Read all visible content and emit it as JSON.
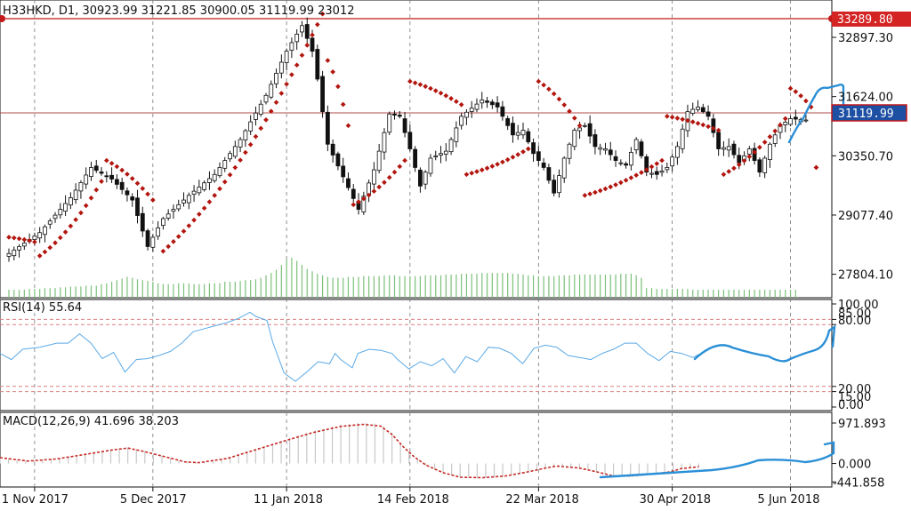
{
  "header": {
    "symbol": "H33HKD",
    "timeframe": "D1",
    "open": "30923.99",
    "high": "31221.85",
    "low": "30900.05",
    "close": "31119.99",
    "volume": "23012"
  },
  "price_tags": {
    "resistance": "33289.80",
    "last": "31119.99"
  },
  "rsi_title": "RSI(14) 55.64",
  "macd_title": "MACD(12,26,9) 41.696 38.203",
  "colors": {
    "candle": "#111111",
    "sar": "#b2160f",
    "resistance_line": "#c21919",
    "rsi_line": "#5aa9e6",
    "macd_signal": "#c42a25",
    "volume": "#7cc07a",
    "annotation": "#2a8fd6",
    "last_tag_bg": "#1d4fa3"
  },
  "chart_data": [
    {
      "type": "candlestick",
      "pane": "price",
      "ylim": [
        27300,
        33700
      ],
      "y_ticks": [
        "32897.30",
        "31624.00",
        "30350.70",
        "29077.40",
        "27804.10"
      ],
      "x_tick_labels": [
        "1 Nov 2017",
        "5 Dec 2017",
        "11 Jan 2018",
        "14 Feb 2018",
        "22 Mar 2018",
        "30 Apr 2018",
        "5 Jun 2018"
      ],
      "x_tick_bar_index": [
        5,
        28,
        54,
        78,
        103,
        129,
        152
      ],
      "bars": 156,
      "horizontal_lines": [
        33289.8,
        31119.99
      ],
      "control_points_close": [
        [
          0,
          28250
        ],
        [
          6,
          28700
        ],
        [
          12,
          29450
        ],
        [
          16,
          30100
        ],
        [
          20,
          29850
        ],
        [
          24,
          29400
        ],
        [
          27,
          28400
        ],
        [
          30,
          29000
        ],
        [
          35,
          29500
        ],
        [
          40,
          29950
        ],
        [
          45,
          30700
        ],
        [
          50,
          31650
        ],
        [
          54,
          32600
        ],
        [
          57,
          33150
        ],
        [
          59,
          32600
        ],
        [
          60,
          32000
        ],
        [
          62,
          30600
        ],
        [
          65,
          29900
        ],
        [
          68,
          29200
        ],
        [
          71,
          30050
        ],
        [
          74,
          31250
        ],
        [
          76,
          31200
        ],
        [
          78,
          30500
        ],
        [
          80,
          29700
        ],
        [
          82,
          30300
        ],
        [
          85,
          30450
        ],
        [
          88,
          31200
        ],
        [
          92,
          31550
        ],
        [
          95,
          31400
        ],
        [
          98,
          30800
        ],
        [
          100,
          30900
        ],
        [
          102,
          30400
        ],
        [
          104,
          30100
        ],
        [
          106,
          29550
        ],
        [
          108,
          30300
        ],
        [
          110,
          30900
        ],
        [
          112,
          31000
        ],
        [
          114,
          30550
        ],
        [
          116,
          30500
        ],
        [
          118,
          30250
        ],
        [
          120,
          30150
        ],
        [
          122,
          30700
        ],
        [
          124,
          30000
        ],
        [
          126,
          29950
        ],
        [
          128,
          30100
        ],
        [
          130,
          30550
        ],
        [
          132,
          31300
        ],
        [
          134,
          31400
        ],
        [
          136,
          31200
        ],
        [
          138,
          30500
        ],
        [
          140,
          30550
        ],
        [
          142,
          30200
        ],
        [
          144,
          30500
        ],
        [
          146,
          30000
        ],
        [
          148,
          30600
        ],
        [
          150,
          31000
        ],
        [
          152,
          31150
        ],
        [
          155,
          31119.99
        ]
      ]
    },
    {
      "type": "scatter",
      "pane": "price",
      "series": [
        {
          "marker": "dot",
          "segments": [
            [
              [
                0,
                28600
              ],
              [
                5,
                28500
              ]
            ],
            [
              [
                6,
                28200
              ],
              [
                18,
                29800
              ]
            ],
            [
              [
                19,
                30250
              ],
              [
                28,
                29400
              ]
            ],
            [
              [
                30,
                28300
              ],
              [
                61,
                33400
              ]
            ],
            [
              [
                62,
                32400
              ],
              [
                66,
                31000
              ]
            ],
            [
              [
                67,
                29300
              ],
              [
                77,
                30250
              ]
            ],
            [
              [
                78,
                31950
              ],
              [
                88,
                31450
              ]
            ],
            [
              [
                89,
                29950
              ],
              [
                101,
                30500
              ]
            ],
            [
              [
                103,
                31950
              ],
              [
                111,
                31000
              ]
            ],
            [
              [
                112,
                29500
              ],
              [
                127,
                30250
              ]
            ],
            [
              [
                128,
                31200
              ],
              [
                138,
                30900
              ]
            ],
            [
              [
                139,
                29950
              ],
              [
                151,
                31150
              ]
            ],
            [
              [
                152,
                31800
              ],
              [
                156,
                31400
              ]
            ],
            [
              [
                157,
                30100
              ],
              [
                157,
                30100
              ]
            ]
          ]
        }
      ]
    },
    {
      "type": "bar",
      "pane": "volume",
      "values_relative": [
        0.2,
        0.2,
        0.2,
        0.2,
        0.22,
        0.22,
        0.22,
        0.24,
        0.24,
        0.24,
        0.26,
        0.26,
        0.28,
        0.28,
        0.28,
        0.3,
        0.3,
        0.3,
        0.34,
        0.36,
        0.4,
        0.44,
        0.48,
        0.52,
        0.5,
        0.46,
        0.44,
        0.42,
        0.4,
        0.36,
        0.34,
        0.34,
        0.34,
        0.36,
        0.36,
        0.36,
        0.34,
        0.34,
        0.34,
        0.36,
        0.36,
        0.36,
        0.4,
        0.4,
        0.4,
        0.42,
        0.44,
        0.44,
        0.46,
        0.5,
        0.56,
        0.62,
        0.7,
        0.82,
        0.96,
        1.0,
        0.92,
        0.82,
        0.72,
        0.66,
        0.6,
        0.56,
        0.52,
        0.5,
        0.5,
        0.5,
        0.52,
        0.52,
        0.52,
        0.54,
        0.54,
        0.54,
        0.54,
        0.56,
        0.56,
        0.56,
        0.54,
        0.54,
        0.54,
        0.54,
        0.54,
        0.56,
        0.56,
        0.56,
        0.56,
        0.58,
        0.58,
        0.58,
        0.6,
        0.6,
        0.6,
        0.6,
        0.62,
        0.62,
        0.62,
        0.62,
        0.62,
        0.62,
        0.6,
        0.6,
        0.58,
        0.56,
        0.56,
        0.54,
        0.54,
        0.54,
        0.54,
        0.56,
        0.56,
        0.56,
        0.58,
        0.58,
        0.58,
        0.58,
        0.58,
        0.58,
        0.58,
        0.58,
        0.58,
        0.6,
        0.6,
        0.6,
        0.56,
        0.5,
        0.24,
        0.24,
        0.22,
        0.22,
        0.22,
        0.22,
        0.22,
        0.22,
        0.22,
        0.2,
        0.2,
        0.2,
        0.2,
        0.2,
        0.2,
        0.2,
        0.2,
        0.2,
        0.2,
        0.2,
        0.2,
        0.2,
        0.2,
        0.2,
        0.2,
        0.2,
        0.2,
        0.2,
        0.2,
        0.2
      ]
    },
    {
      "type": "line",
      "pane": "rsi",
      "ylim": [
        0,
        100
      ],
      "y_ticks": [
        "100.00",
        "85.00",
        "80.00",
        "20.00",
        "15.00",
        "0.00"
      ],
      "levels": [
        85,
        80,
        20,
        15
      ],
      "series": [
        {
          "control_points": [
            [
              0,
              52
            ],
            [
              4,
              46
            ],
            [
              8,
              56
            ],
            [
              14,
              58
            ],
            [
              20,
              62
            ],
            [
              24,
              62
            ],
            [
              28,
              71
            ],
            [
              32,
              62
            ],
            [
              36,
              47
            ],
            [
              40,
              53
            ],
            [
              44,
              34
            ],
            [
              48,
              46
            ],
            [
              52,
              47
            ],
            [
              56,
              50
            ],
            [
              60,
              54
            ],
            [
              64,
              62
            ],
            [
              68,
              73
            ],
            [
              72,
              76
            ],
            [
              76,
              79
            ],
            [
              80,
              82
            ],
            [
              84,
              86
            ],
            [
              88,
              92
            ],
            [
              90,
              88
            ],
            [
              94,
              84
            ],
            [
              96,
              63
            ],
            [
              100,
              33
            ],
            [
              104,
              25
            ],
            [
              108,
              34
            ],
            [
              112,
              44
            ],
            [
              116,
              42
            ],
            [
              118,
              52
            ],
            [
              120,
              46
            ],
            [
              124,
              38
            ],
            [
              126,
              52
            ],
            [
              130,
              56
            ],
            [
              134,
              55
            ],
            [
              138,
              52
            ],
            [
              140,
              46
            ],
            [
              144,
              37
            ],
            [
              148,
              44
            ],
            [
              152,
              40
            ],
            [
              156,
              47
            ],
            [
              160,
              33
            ],
            [
              164,
              49
            ],
            [
              168,
              44
            ],
            [
              172,
              58
            ],
            [
              176,
              57
            ],
            [
              180,
              52
            ],
            [
              184,
              42
            ],
            [
              188,
              57
            ],
            [
              192,
              60
            ],
            [
              196,
              58
            ],
            [
              200,
              50
            ],
            [
              204,
              48
            ],
            [
              208,
              46
            ],
            [
              212,
              52
            ],
            [
              216,
              56
            ],
            [
              220,
              62
            ],
            [
              224,
              62
            ],
            [
              228,
              52
            ],
            [
              232,
              45
            ],
            [
              236,
              54
            ],
            [
              240,
              52
            ],
            [
              244,
              48
            ],
            [
              246,
              51
            ]
          ]
        }
      ]
    },
    {
      "type": "line",
      "pane": "macd",
      "ylim": [
        -500,
        1100
      ],
      "y_ticks": [
        "971.893",
        "0.000",
        "-441.858"
      ],
      "series": [
        {
          "style": "dashed",
          "control_points": [
            [
              0,
              140
            ],
            [
              10,
              60
            ],
            [
              20,
              110
            ],
            [
              30,
              220
            ],
            [
              40,
              330
            ],
            [
              45,
              370
            ],
            [
              50,
              300
            ],
            [
              60,
              130
            ],
            [
              65,
              40
            ],
            [
              70,
              20
            ],
            [
              80,
              120
            ],
            [
              90,
              330
            ],
            [
              100,
              540
            ],
            [
              110,
              740
            ],
            [
              120,
              890
            ],
            [
              128,
              940
            ],
            [
              134,
              900
            ],
            [
              138,
              700
            ],
            [
              142,
              400
            ],
            [
              146,
              150
            ],
            [
              150,
              -40
            ],
            [
              156,
              -220
            ],
            [
              162,
              -330
            ],
            [
              170,
              -340
            ],
            [
              178,
              -300
            ],
            [
              186,
              -200
            ],
            [
              192,
              -110
            ],
            [
              196,
              -60
            ],
            [
              204,
              -110
            ],
            [
              210,
              -200
            ],
            [
              216,
              -300
            ],
            [
              222,
              -300
            ],
            [
              230,
              -250
            ],
            [
              236,
              -200
            ],
            [
              240,
              -120
            ],
            [
              246,
              -80
            ]
          ]
        }
      ]
    }
  ],
  "annotations": {
    "description_free": true
  }
}
